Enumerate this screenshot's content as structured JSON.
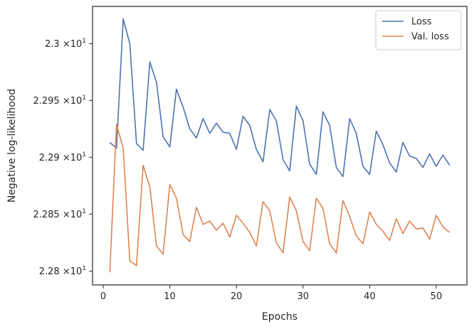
{
  "chart_data": {
    "type": "line",
    "xlabel": "Epochs",
    "ylabel": "Negative log-likelihood",
    "xlim": [
      -1.6,
      54.6
    ],
    "ylim": [
      22.788,
      23.033
    ],
    "xticks": [
      0,
      10,
      20,
      30,
      40,
      50
    ],
    "xtick_labels": [
      "0",
      "10",
      "20",
      "30",
      "40",
      "50"
    ],
    "yscale": "log",
    "yticks": [
      22.8,
      22.85,
      22.9,
      22.95,
      23.0
    ],
    "ytick_labels": [
      {
        "mantissa": "2.28",
        "exp": "1"
      },
      {
        "mantissa": "2.285",
        "exp": "1"
      },
      {
        "mantissa": "2.29",
        "exp": "1"
      },
      {
        "mantissa": "2.295",
        "exp": "1"
      },
      {
        "mantissa": "2.3",
        "exp": "1"
      }
    ],
    "x_times": "×10",
    "grid": false,
    "legend_position": "top-right",
    "x": [
      1,
      2,
      3,
      4,
      5,
      6,
      7,
      8,
      9,
      10,
      11,
      12,
      13,
      14,
      15,
      16,
      17,
      18,
      19,
      20,
      21,
      22,
      23,
      24,
      25,
      26,
      27,
      28,
      29,
      30,
      31,
      32,
      33,
      34,
      35,
      36,
      37,
      38,
      39,
      40,
      41,
      42,
      43,
      44,
      45,
      46,
      47,
      48,
      49,
      50,
      51,
      52
    ],
    "series": [
      {
        "name": "Loss",
        "color": "#4c72b0",
        "values": [
          22.913,
          22.908,
          23.022,
          23.0,
          22.912,
          22.906,
          22.984,
          22.966,
          22.918,
          22.909,
          22.96,
          22.944,
          22.925,
          22.917,
          22.934,
          22.921,
          22.93,
          22.922,
          22.921,
          22.907,
          22.936,
          22.928,
          22.907,
          22.896,
          22.942,
          22.932,
          22.898,
          22.888,
          22.945,
          22.932,
          22.894,
          22.885,
          22.94,
          22.928,
          22.891,
          22.883,
          22.934,
          22.921,
          22.892,
          22.885,
          22.923,
          22.911,
          22.895,
          22.887,
          22.913,
          22.901,
          22.899,
          22.891,
          22.903,
          22.892,
          22.902,
          22.893
        ]
      },
      {
        "name": "Val. loss",
        "color": "#dd8452",
        "values": [
          22.799,
          22.929,
          22.908,
          22.809,
          22.805,
          22.893,
          22.874,
          22.822,
          22.815,
          22.876,
          22.864,
          22.832,
          22.826,
          22.856,
          22.841,
          22.844,
          22.836,
          22.842,
          22.83,
          22.849,
          22.842,
          22.834,
          22.822,
          22.861,
          22.853,
          22.825,
          22.816,
          22.865,
          22.853,
          22.826,
          22.818,
          22.864,
          22.855,
          22.824,
          22.816,
          22.862,
          22.848,
          22.831,
          22.824,
          22.852,
          22.841,
          22.835,
          22.827,
          22.846,
          22.833,
          22.844,
          22.837,
          22.838,
          22.828,
          22.849,
          22.839,
          22.834
        ]
      }
    ]
  }
}
